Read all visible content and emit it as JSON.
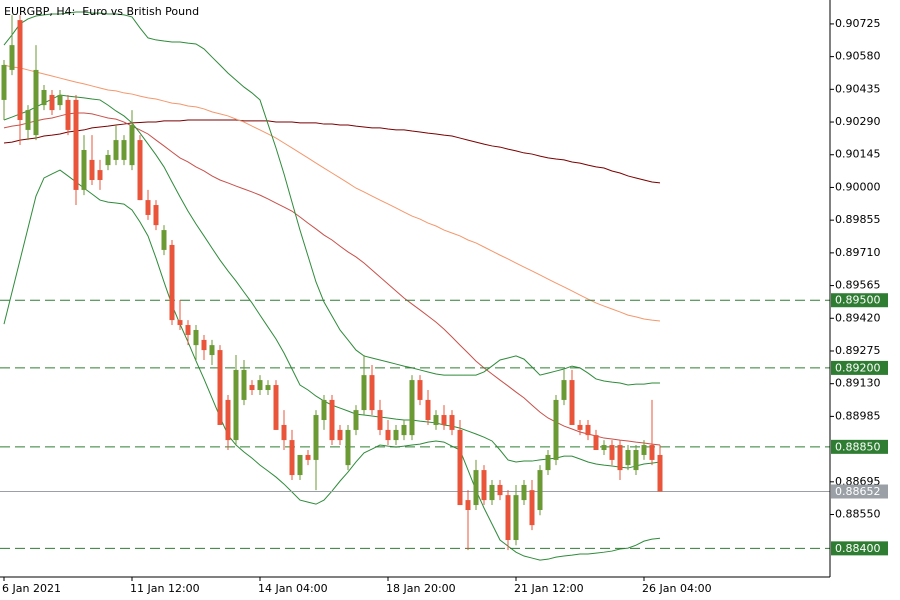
{
  "chart_data": {
    "type": "candlestick",
    "title": "EURGBP, H4:  Euro vs British Pound",
    "categories": [
      "6 Jan 2021",
      null,
      null,
      null,
      null,
      null,
      null,
      null,
      null,
      null,
      null,
      null,
      null,
      null,
      null,
      null,
      "11 Jan 12:00",
      null,
      null,
      null,
      null,
      null,
      null,
      null,
      null,
      null,
      null,
      null,
      null,
      null,
      null,
      null,
      "14 Jan 04:00",
      null,
      null,
      null,
      null,
      null,
      null,
      null,
      null,
      null,
      null,
      null,
      null,
      null,
      null,
      null,
      "18 Jan 20:00",
      null,
      null,
      null,
      null,
      null,
      null,
      null,
      null,
      null,
      null,
      null,
      null,
      null,
      null,
      null,
      "21 Jan 12:00",
      null,
      null,
      null,
      null,
      null,
      null,
      null,
      null,
      null,
      null,
      null,
      null,
      null,
      null,
      null,
      "26 Jan 04:00",
      null,
      null
    ],
    "open": [
      0.90388,
      0.90521,
      0.90742,
      0.90255,
      0.90232,
      0.90365,
      0.9041,
      0.90365,
      0.90388,
      0.90388,
      0.89989,
      0.90122,
      0.90077,
      0.90099,
      0.90122,
      0.90122,
      0.90099,
      0.9021,
      0.89944,
      0.89922,
      0.89723,
      0.89745,
      0.89412,
      0.8939,
      0.89301,
      0.89324,
      0.89257,
      0.89279,
      0.89058,
      0.8888,
      0.89058,
      0.89124,
      0.89102,
      0.89102,
      0.89124,
      0.88947,
      0.8888,
      0.88725,
      0.88814,
      0.88792,
      0.88969,
      0.89058,
      0.88925,
      0.88769,
      0.88925,
      0.89013,
      0.89168,
      0.89013,
      0.88925,
      0.8888,
      0.88902,
      0.88902,
      0.89146,
      0.89058,
      0.88947,
      0.88991,
      0.88991,
      0.88925,
      0.88614,
      0.88592,
      0.88747,
      0.88614,
      0.88681,
      0.88636,
      0.88437,
      0.88614,
      0.88658,
      0.8857,
      0.88747,
      0.88792,
      0.89058,
      0.89146,
      0.88947,
      0.88947,
      0.88902,
      0.88836,
      0.88858,
      0.88858,
      0.88769,
      0.88747,
      0.88814,
      0.88858,
      0.88814
    ],
    "high": [
      0.90565,
      0.90764,
      0.90764,
      0.90365,
      0.90631,
      0.90454,
      0.90432,
      0.90432,
      0.9041,
      0.9041,
      0.90232,
      0.90232,
      0.90122,
      0.90166,
      0.90277,
      0.90232,
      0.90343,
      0.90232,
      0.89989,
      0.89944,
      0.89833,
      0.89767,
      0.89501,
      0.89412,
      0.8939,
      0.89346,
      0.89324,
      0.89301,
      0.8908,
      0.89257,
      0.89235,
      0.89146,
      0.89168,
      0.89146,
      0.89146,
      0.89013,
      0.88925,
      0.88814,
      0.88836,
      0.89013,
      0.8908,
      0.8908,
      0.88947,
      0.88947,
      0.89035,
      0.89257,
      0.89213,
      0.89058,
      0.88969,
      0.88947,
      0.88969,
      0.89168,
      0.89168,
      0.89102,
      0.89013,
      0.89035,
      0.89013,
      0.88969,
      0.88658,
      0.88792,
      0.88769,
      0.88703,
      0.88703,
      0.88658,
      0.88681,
      0.88703,
      0.88703,
      0.88769,
      0.88836,
      0.8908,
      0.89191,
      0.89191,
      0.88969,
      0.88969,
      0.88925,
      0.8888,
      0.8888,
      0.8888,
      0.88858,
      0.88858,
      0.8888,
      0.89058,
      0.88858
    ],
    "low": [
      0.90299,
      0.90498,
      0.90188,
      0.9021,
      0.9021,
      0.90343,
      0.90321,
      0.90343,
      0.90232,
      0.89922,
      0.89966,
      0.90011,
      0.89989,
      0.90077,
      0.90099,
      0.90099,
      0.90077,
      0.89944,
      0.89856,
      0.89811,
      0.897,
      0.8939,
      0.89368,
      0.89301,
      0.89235,
      0.89235,
      0.89213,
      0.88947,
      0.88836,
      0.88858,
      0.89035,
      0.8908,
      0.8908,
      0.8908,
      0.88925,
      0.88836,
      0.88703,
      0.88703,
      0.88769,
      0.88658,
      0.88925,
      0.88858,
      0.88858,
      0.88747,
      0.88902,
      0.88991,
      0.88991,
      0.88902,
      0.88858,
      0.88858,
      0.8888,
      0.8888,
      0.89035,
      0.88947,
      0.88925,
      0.88925,
      0.88902,
      0.88592,
      0.88392,
      0.8857,
      0.88592,
      0.88592,
      0.88614,
      0.88392,
      0.88414,
      0.88592,
      0.88481,
      0.88547,
      0.88725,
      0.88769,
      0.89035,
      0.88947,
      0.88902,
      0.8888,
      0.88836,
      0.88814,
      0.88769,
      0.88703,
      0.88747,
      0.88725,
      0.88792,
      0.88769,
      0.88652
    ],
    "close": [
      0.90543,
      0.90631,
      0.90299,
      0.90343,
      0.90521,
      0.90432,
      0.90343,
      0.9041,
      0.90255,
      0.89989,
      0.90166,
      0.90033,
      0.90033,
      0.90144,
      0.9021,
      0.9021,
      0.90277,
      0.89944,
      0.89878,
      0.89833,
      0.89811,
      0.89412,
      0.8939,
      0.89346,
      0.89368,
      0.89279,
      0.89301,
      0.88947,
      0.8888,
      0.89191,
      0.89191,
      0.89102,
      0.89146,
      0.89124,
      0.88925,
      0.8888,
      0.88725,
      0.88814,
      0.88792,
      0.88991,
      0.89058,
      0.8888,
      0.8888,
      0.88925,
      0.89013,
      0.89168,
      0.89013,
      0.88925,
      0.8888,
      0.88925,
      0.88947,
      0.89146,
      0.89058,
      0.88969,
      0.88991,
      0.88947,
      0.88925,
      0.88592,
      0.8857,
      0.88747,
      0.88614,
      0.88681,
      0.88636,
      0.88437,
      0.88636,
      0.88681,
      0.88503,
      0.88747,
      0.88814,
      0.89058,
      0.89146,
      0.88947,
      0.88925,
      0.88902,
      0.88836,
      0.88858,
      0.88792,
      0.88747,
      0.88836,
      0.88836,
      0.88858,
      0.88792,
      0.88652
    ],
    "up_color": "#6b9a35",
    "down_color": "#e8553b",
    "overlays": [
      {
        "color": "#7a0000",
        "values": [
          0.90197,
          0.90201,
          0.9021,
          0.90215,
          0.90219,
          0.90228,
          0.90232,
          0.90237,
          0.90246,
          0.9025,
          0.90255,
          0.90264,
          0.90268,
          0.90272,
          0.90277,
          0.90281,
          0.90286,
          0.90288,
          0.9029,
          0.9029,
          0.90295,
          0.90295,
          0.90295,
          0.90299,
          0.90299,
          0.90299,
          0.90299,
          0.90299,
          0.90299,
          0.90299,
          0.90295,
          0.90295,
          0.90295,
          0.90295,
          0.9029,
          0.9029,
          0.9029,
          0.90286,
          0.90286,
          0.90286,
          0.90281,
          0.90281,
          0.90277,
          0.90277,
          0.90272,
          0.90268,
          0.90264,
          0.90264,
          0.90259,
          0.90255,
          0.90255,
          0.9025,
          0.90246,
          0.90241,
          0.90237,
          0.90232,
          0.90228,
          0.90219,
          0.9021,
          0.90201,
          0.90192,
          0.90184,
          0.90179,
          0.9017,
          0.90162,
          0.90153,
          0.90148,
          0.90139,
          0.90131,
          0.90126,
          0.90122,
          0.90113,
          0.90108,
          0.90099,
          0.90091,
          0.90086,
          0.90073,
          0.90064,
          0.90051,
          0.90042,
          0.90033,
          0.90024,
          0.9002
        ]
      },
      {
        "color": "#f4976c",
        "values": [
          0.90543,
          0.90534,
          0.9053,
          0.90521,
          0.90512,
          0.90503,
          0.90494,
          0.90485,
          0.90476,
          0.90467,
          0.90459,
          0.9045,
          0.90441,
          0.90432,
          0.90428,
          0.90419,
          0.90414,
          0.90405,
          0.90397,
          0.90392,
          0.90383,
          0.90374,
          0.9037,
          0.90361,
          0.90357,
          0.90348,
          0.90335,
          0.90326,
          0.90317,
          0.90303,
          0.9029,
          0.90272,
          0.90255,
          0.90237,
          0.90219,
          0.90197,
          0.90175,
          0.90153,
          0.90131,
          0.90108,
          0.90086,
          0.90064,
          0.90042,
          0.9002,
          0.89997,
          0.8998,
          0.89962,
          0.89944,
          0.89927,
          0.89909,
          0.89891,
          0.89873,
          0.8986,
          0.89842,
          0.89829,
          0.89811,
          0.89798,
          0.89785,
          0.89767,
          0.89754,
          0.89736,
          0.89718,
          0.897,
          0.89683,
          0.89665,
          0.89647,
          0.8963,
          0.89612,
          0.89594,
          0.89576,
          0.89559,
          0.89541,
          0.89523,
          0.89505,
          0.89488,
          0.89474,
          0.89461,
          0.89448,
          0.89434,
          0.89426,
          0.89417,
          0.89412,
          0.89408
        ]
      },
      {
        "color": "#c8504a",
        "values": [
          0.90264,
          0.90272,
          0.90277,
          0.90286,
          0.90295,
          0.90303,
          0.90308,
          0.90317,
          0.90326,
          0.9033,
          0.9033,
          0.90326,
          0.90317,
          0.90308,
          0.90303,
          0.9029,
          0.90272,
          0.90255,
          0.90237,
          0.9021,
          0.90184,
          0.90157,
          0.90131,
          0.90113,
          0.90091,
          0.90073,
          0.90051,
          0.90033,
          0.9002,
          0.90006,
          0.89993,
          0.8998,
          0.89966,
          0.89949,
          0.89931,
          0.89913,
          0.89895,
          0.89869,
          0.89842,
          0.89816,
          0.89789,
          0.89767,
          0.8974,
          0.89714,
          0.89692,
          0.89665,
          0.89634,
          0.89603,
          0.89572,
          0.89541,
          0.8951,
          0.89483,
          0.89457,
          0.8943,
          0.89403,
          0.89372,
          0.89337,
          0.89301,
          0.89266,
          0.8923,
          0.892,
          0.89173,
          0.89146,
          0.8912,
          0.89093,
          0.89067,
          0.89035,
          0.89004,
          0.88978,
          0.8896,
          0.88942,
          0.88929,
          0.88916,
          0.88907,
          0.88898,
          0.88889,
          0.88885,
          0.8888,
          0.88876,
          0.88871,
          0.88867,
          0.88862,
          0.88858
        ]
      },
      {
        "color": "#2e8b3a",
        "values": [
          0.90631,
          0.90676,
          0.90725,
          0.90747,
          0.9076,
          0.90765,
          0.90769,
          0.90769,
          0.90773,
          0.90778,
          0.90778,
          0.90773,
          0.90773,
          0.90769,
          0.90769,
          0.90765,
          0.90756,
          0.90707,
          0.90663,
          0.90654,
          0.90649,
          0.90645,
          0.90645,
          0.9064,
          0.90636,
          0.90614,
          0.90578,
          0.90543,
          0.90507,
          0.90476,
          0.90445,
          0.90419,
          0.90388,
          0.90281,
          0.90175,
          0.9006,
          0.89935,
          0.89811,
          0.89696,
          0.89581,
          0.89492,
          0.8943,
          0.89368,
          0.89324,
          0.89279,
          0.89253,
          0.89244,
          0.89235,
          0.89226,
          0.89217,
          0.89208,
          0.892,
          0.89191,
          0.89182,
          0.89173,
          0.89168,
          0.89168,
          0.89168,
          0.89168,
          0.89168,
          0.89182,
          0.89208,
          0.89235,
          0.89244,
          0.89253,
          0.89239,
          0.89204,
          0.89168,
          0.89177,
          0.89186,
          0.89195,
          0.89208,
          0.892,
          0.89177,
          0.89151,
          0.89142,
          0.89137,
          0.89133,
          0.89124,
          0.89128,
          0.89128,
          0.89133,
          0.89133
        ]
      },
      {
        "color": "#2e8b3a",
        "values": [
          0.90299,
          0.90312,
          0.90326,
          0.90339,
          0.90357,
          0.90374,
          0.90392,
          0.9041,
          0.90405,
          0.90401,
          0.90397,
          0.90392,
          0.90388,
          0.90365,
          0.90339,
          0.90317,
          0.90286,
          0.90241,
          0.90193,
          0.90144,
          0.90091,
          0.90024,
          0.89958,
          0.89895,
          0.89838,
          0.89785,
          0.89731,
          0.89678,
          0.8963,
          0.89585,
          0.89536,
          0.89488,
          0.89434,
          0.89381,
          0.89328,
          0.89266,
          0.89195,
          0.89124,
          0.89102,
          0.89075,
          0.89053,
          0.89035,
          0.89022,
          0.89009,
          0.88995,
          0.88991,
          0.88987,
          0.88982,
          0.88978,
          0.88973,
          0.88969,
          0.88969,
          0.88964,
          0.8896,
          0.88956,
          0.88947,
          0.88942,
          0.88933,
          0.8892,
          0.88907,
          0.88893,
          0.88876,
          0.88836,
          0.88792,
          0.88783,
          0.88787,
          0.88787,
          0.88792,
          0.88796,
          0.888,
          0.88809,
          0.88809,
          0.88796,
          0.88783,
          0.88774,
          0.88769,
          0.88765,
          0.8876,
          0.88756,
          0.88765,
          0.88774,
          0.88778,
          0.88783
        ]
      },
      {
        "color": "#2e8b3a",
        "values": [
          0.89394,
          0.89536,
          0.89678,
          0.8982,
          0.89962,
          0.90042,
          0.9006,
          0.90077,
          0.90051,
          0.90024,
          0.89997,
          0.89971,
          0.89944,
          0.89935,
          0.89931,
          0.89926,
          0.899,
          0.89847,
          0.89785,
          0.89687,
          0.89581,
          0.89479,
          0.89394,
          0.89315,
          0.89231,
          0.89151,
          0.89067,
          0.88982,
          0.88902,
          0.88858,
          0.88827,
          0.888,
          0.88769,
          0.88743,
          0.88716,
          0.88685,
          0.8865,
          0.88614,
          0.88605,
          0.88596,
          0.88614,
          0.88654,
          0.88698,
          0.88738,
          0.88783,
          0.88823,
          0.8884,
          0.88858,
          0.88853,
          0.88849,
          0.88853,
          0.88858,
          0.88862,
          0.88871,
          0.88876,
          0.88871,
          0.88853,
          0.88836,
          0.88747,
          0.88658,
          0.88579,
          0.88508,
          0.88437,
          0.8841,
          0.88383,
          0.88366,
          0.88357,
          0.88348,
          0.88352,
          0.88361,
          0.88366,
          0.8837,
          0.88375,
          0.88375,
          0.88379,
          0.88383,
          0.88388,
          0.88397,
          0.88401,
          0.88414,
          0.88432,
          0.88441,
          0.88445
        ]
      }
    ],
    "levels": [
      {
        "value": 0.895,
        "label": "0.89500"
      },
      {
        "value": 0.892,
        "label": "0.89200"
      },
      {
        "value": 0.8885,
        "label": "0.88850"
      },
      {
        "value": 0.884,
        "label": "0.88400"
      }
    ],
    "level_color": "#2e7d32",
    "last_price": 0.88652,
    "last_price_color": "#9aa0a6",
    "ylim": [
      0.88273,
      0.90831
    ],
    "yticks": [
      0.90725,
      {
        "value": 0.9058,
        "label": "0.90580"
      },
      0.90435,
      {
        "value": 0.9029,
        "label": "0.90290"
      },
      0.90145,
      {
        "value": 0.9,
        "label": "0.90000"
      },
      0.89855,
      {
        "value": 0.8971,
        "label": "0.89710"
      },
      0.89565,
      {
        "value": 0.8942,
        "label": "0.89420"
      },
      0.89275,
      {
        "value": 0.8913,
        "label": "0.89130"
      },
      0.88985,
      0.88695,
      {
        "value": 0.8855,
        "label": "0.88550"
      }
    ]
  }
}
